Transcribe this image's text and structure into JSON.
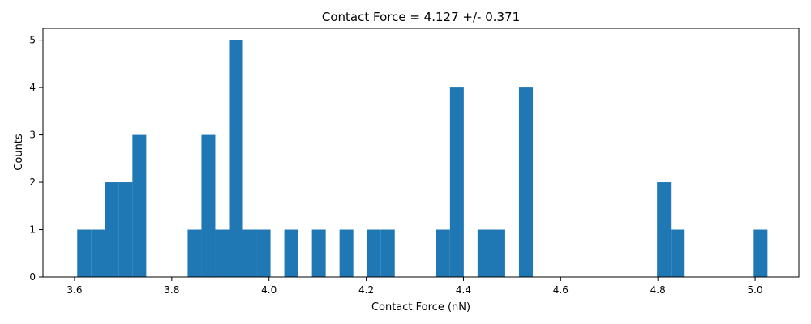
{
  "chart_data": {
    "type": "bar",
    "title": "Contact Force = 4.127 +/- 0.371",
    "xlabel": "Contact Force (nN)",
    "ylabel": "Counts",
    "xlim": [
      3.535,
      5.09
    ],
    "ylim": [
      0,
      5.25
    ],
    "xticks": [
      "3.6",
      "3.8",
      "4.0",
      "4.2",
      "4.4",
      "4.6",
      "4.8",
      "5.0"
    ],
    "yticks": [
      "0",
      "1",
      "2",
      "3",
      "4",
      "5"
    ],
    "grid": false,
    "legend": "none",
    "bin_width": 0.0284,
    "bar_color": "#1f77b4",
    "bins": [
      {
        "start": 3.6055,
        "count": 1
      },
      {
        "start": 3.6339,
        "count": 1
      },
      {
        "start": 3.6623,
        "count": 2
      },
      {
        "start": 3.6907,
        "count": 2
      },
      {
        "start": 3.7191,
        "count": 3
      },
      {
        "start": 3.8327,
        "count": 1
      },
      {
        "start": 3.8611,
        "count": 3
      },
      {
        "start": 3.8895,
        "count": 1
      },
      {
        "start": 3.9179,
        "count": 5
      },
      {
        "start": 3.9463,
        "count": 1
      },
      {
        "start": 3.9747,
        "count": 1
      },
      {
        "start": 4.0315,
        "count": 1
      },
      {
        "start": 4.0883,
        "count": 1
      },
      {
        "start": 4.1451,
        "count": 1
      },
      {
        "start": 4.2019,
        "count": 1
      },
      {
        "start": 4.2303,
        "count": 1
      },
      {
        "start": 4.3439,
        "count": 1
      },
      {
        "start": 4.3723,
        "count": 4
      },
      {
        "start": 4.4291,
        "count": 1
      },
      {
        "start": 4.4575,
        "count": 1
      },
      {
        "start": 4.5143,
        "count": 4
      },
      {
        "start": 4.7983,
        "count": 2
      },
      {
        "start": 4.8267,
        "count": 1
      },
      {
        "start": 4.9971,
        "count": 1
      }
    ]
  }
}
